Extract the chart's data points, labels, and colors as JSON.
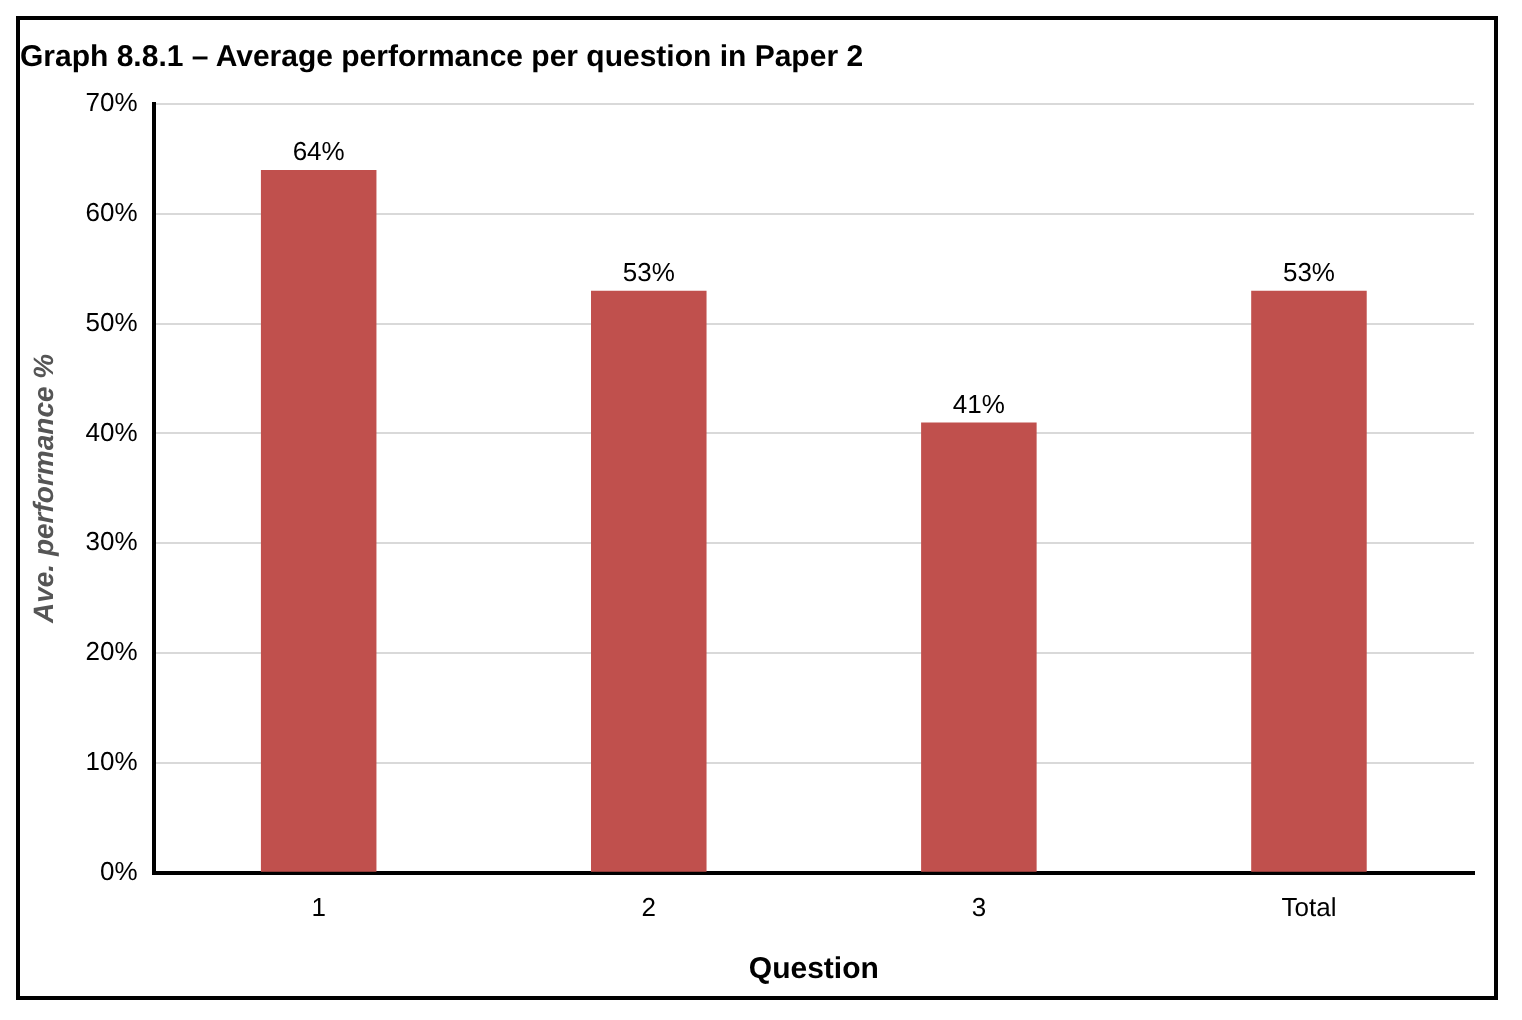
{
  "chart_data": {
    "type": "bar",
    "title": "Graph 8.8.1 – Average performance per question in Paper 2",
    "xlabel": "Question",
    "ylabel": "Ave. performance %",
    "categories": [
      "1",
      "2",
      "3",
      "Total"
    ],
    "values": [
      64,
      53,
      41,
      53
    ],
    "color": "#c0504d",
    "ylim": [
      0,
      70
    ],
    "yticks": [
      {
        "value": 0,
        "label": "0%"
      },
      {
        "value": 10,
        "label": "10%"
      },
      {
        "value": 20,
        "label": "20%"
      },
      {
        "value": 30,
        "label": "30%"
      },
      {
        "value": 40,
        "label": "40%"
      },
      {
        "value": 50,
        "label": "50%"
      },
      {
        "value": 60,
        "label": "60%"
      },
      {
        "value": 70,
        "label": "70%"
      }
    ],
    "value_labels": [
      "64%",
      "53%",
      "41%",
      "53%"
    ],
    "grid": "y",
    "legend": false
  }
}
